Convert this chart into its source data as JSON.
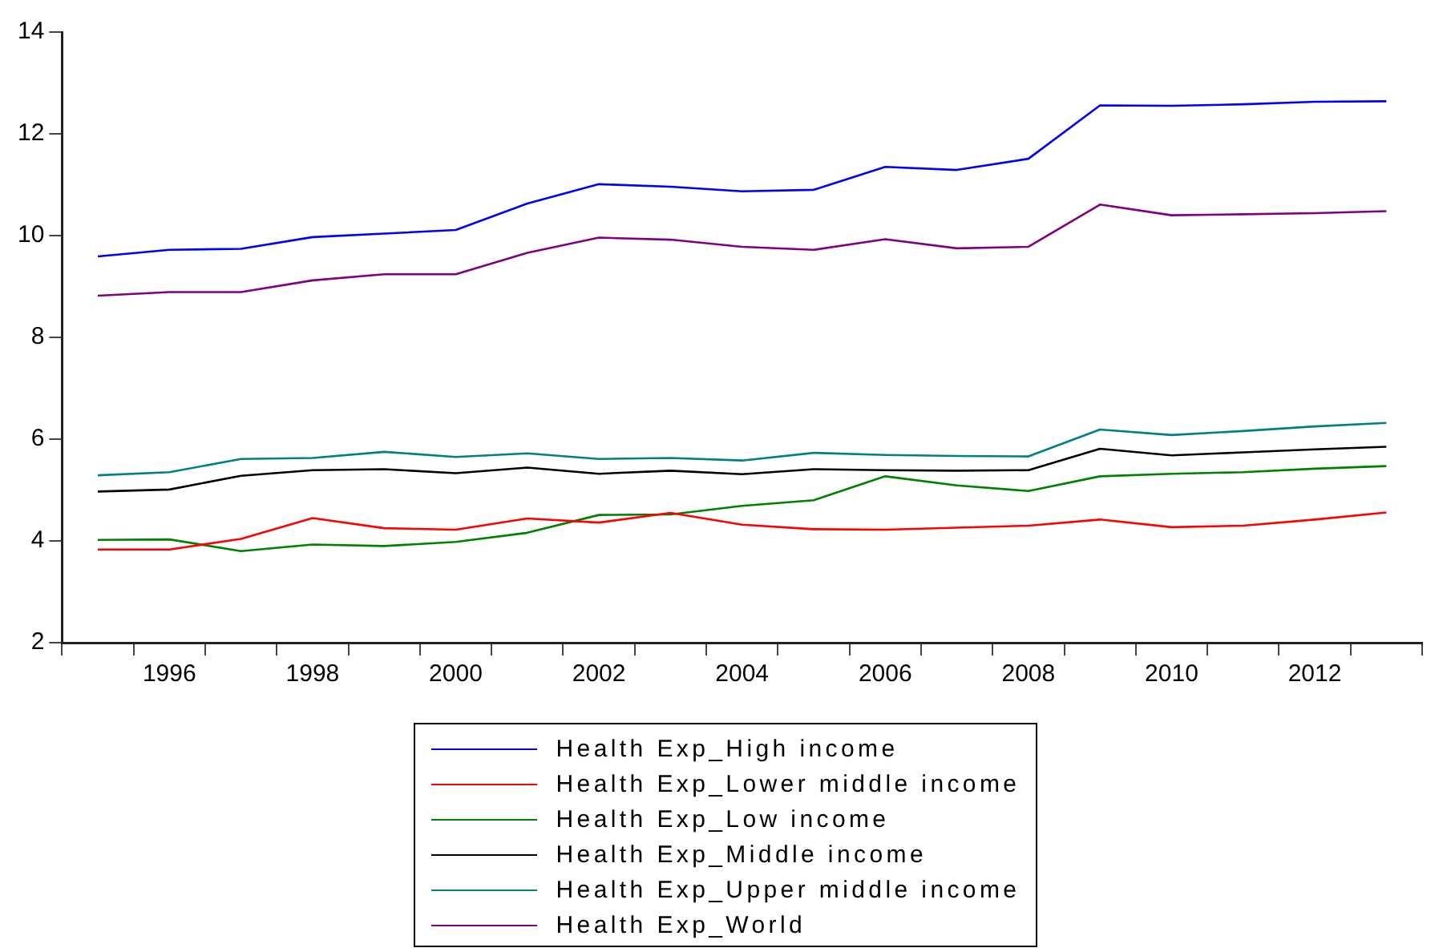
{
  "chart_data": {
    "type": "line",
    "categories": [
      null,
      "1996",
      null,
      "1998",
      null,
      "2000",
      null,
      "2002",
      null,
      "2004",
      null,
      "2006",
      null,
      "2008",
      null,
      "2010",
      null,
      "2012",
      null
    ],
    "series": [
      {
        "name": "Health Exp_High income",
        "color": "#0000ff",
        "values": [
          9.59,
          9.72,
          9.74,
          9.97,
          10.04,
          10.11,
          10.63,
          11.01,
          10.96,
          10.87,
          10.9,
          11.35,
          11.29,
          11.51,
          12.56,
          12.55,
          12.58,
          12.63,
          12.64
        ]
      },
      {
        "name": "Health Exp_Lower middle income",
        "color": "#ff0000",
        "values": [
          3.83,
          3.83,
          4.04,
          4.45,
          4.25,
          4.22,
          4.44,
          4.36,
          4.55,
          4.32,
          4.23,
          4.22,
          4.26,
          4.3,
          4.42,
          4.27,
          4.3,
          4.42,
          4.56
        ]
      },
      {
        "name": "Health Exp_Low income",
        "color": "#008000",
        "values": [
          4.02,
          4.03,
          3.8,
          3.93,
          3.9,
          3.98,
          4.16,
          4.51,
          4.52,
          4.69,
          4.8,
          5.27,
          5.09,
          4.98,
          5.27,
          5.32,
          5.35,
          5.42,
          5.47
        ]
      },
      {
        "name": "Health Exp_Middle income",
        "color": "#000000",
        "values": [
          4.97,
          5.01,
          5.28,
          5.39,
          5.41,
          5.33,
          5.44,
          5.32,
          5.38,
          5.31,
          5.41,
          5.39,
          5.38,
          5.39,
          5.81,
          5.68,
          5.74,
          5.8,
          5.85
        ]
      },
      {
        "name": "Health Exp_Upper middle income",
        "color": "#008080",
        "values": [
          5.29,
          5.35,
          5.61,
          5.63,
          5.75,
          5.65,
          5.72,
          5.61,
          5.63,
          5.58,
          5.73,
          5.69,
          5.67,
          5.66,
          6.19,
          6.08,
          6.16,
          6.25,
          6.32
        ]
      },
      {
        "name": "Health Exp_World",
        "color": "#800080",
        "values": [
          8.82,
          8.89,
          8.89,
          9.12,
          9.24,
          9.24,
          9.66,
          9.96,
          9.92,
          9.78,
          9.72,
          9.93,
          9.75,
          9.78,
          10.61,
          10.4,
          10.42,
          10.44,
          10.48
        ]
      }
    ],
    "ylim": [
      2,
      14
    ],
    "yticks": [
      2,
      4,
      6,
      8,
      10,
      12,
      14
    ],
    "grid": false,
    "legend": "bottom",
    "marker": "none",
    "line_style": "solid"
  }
}
